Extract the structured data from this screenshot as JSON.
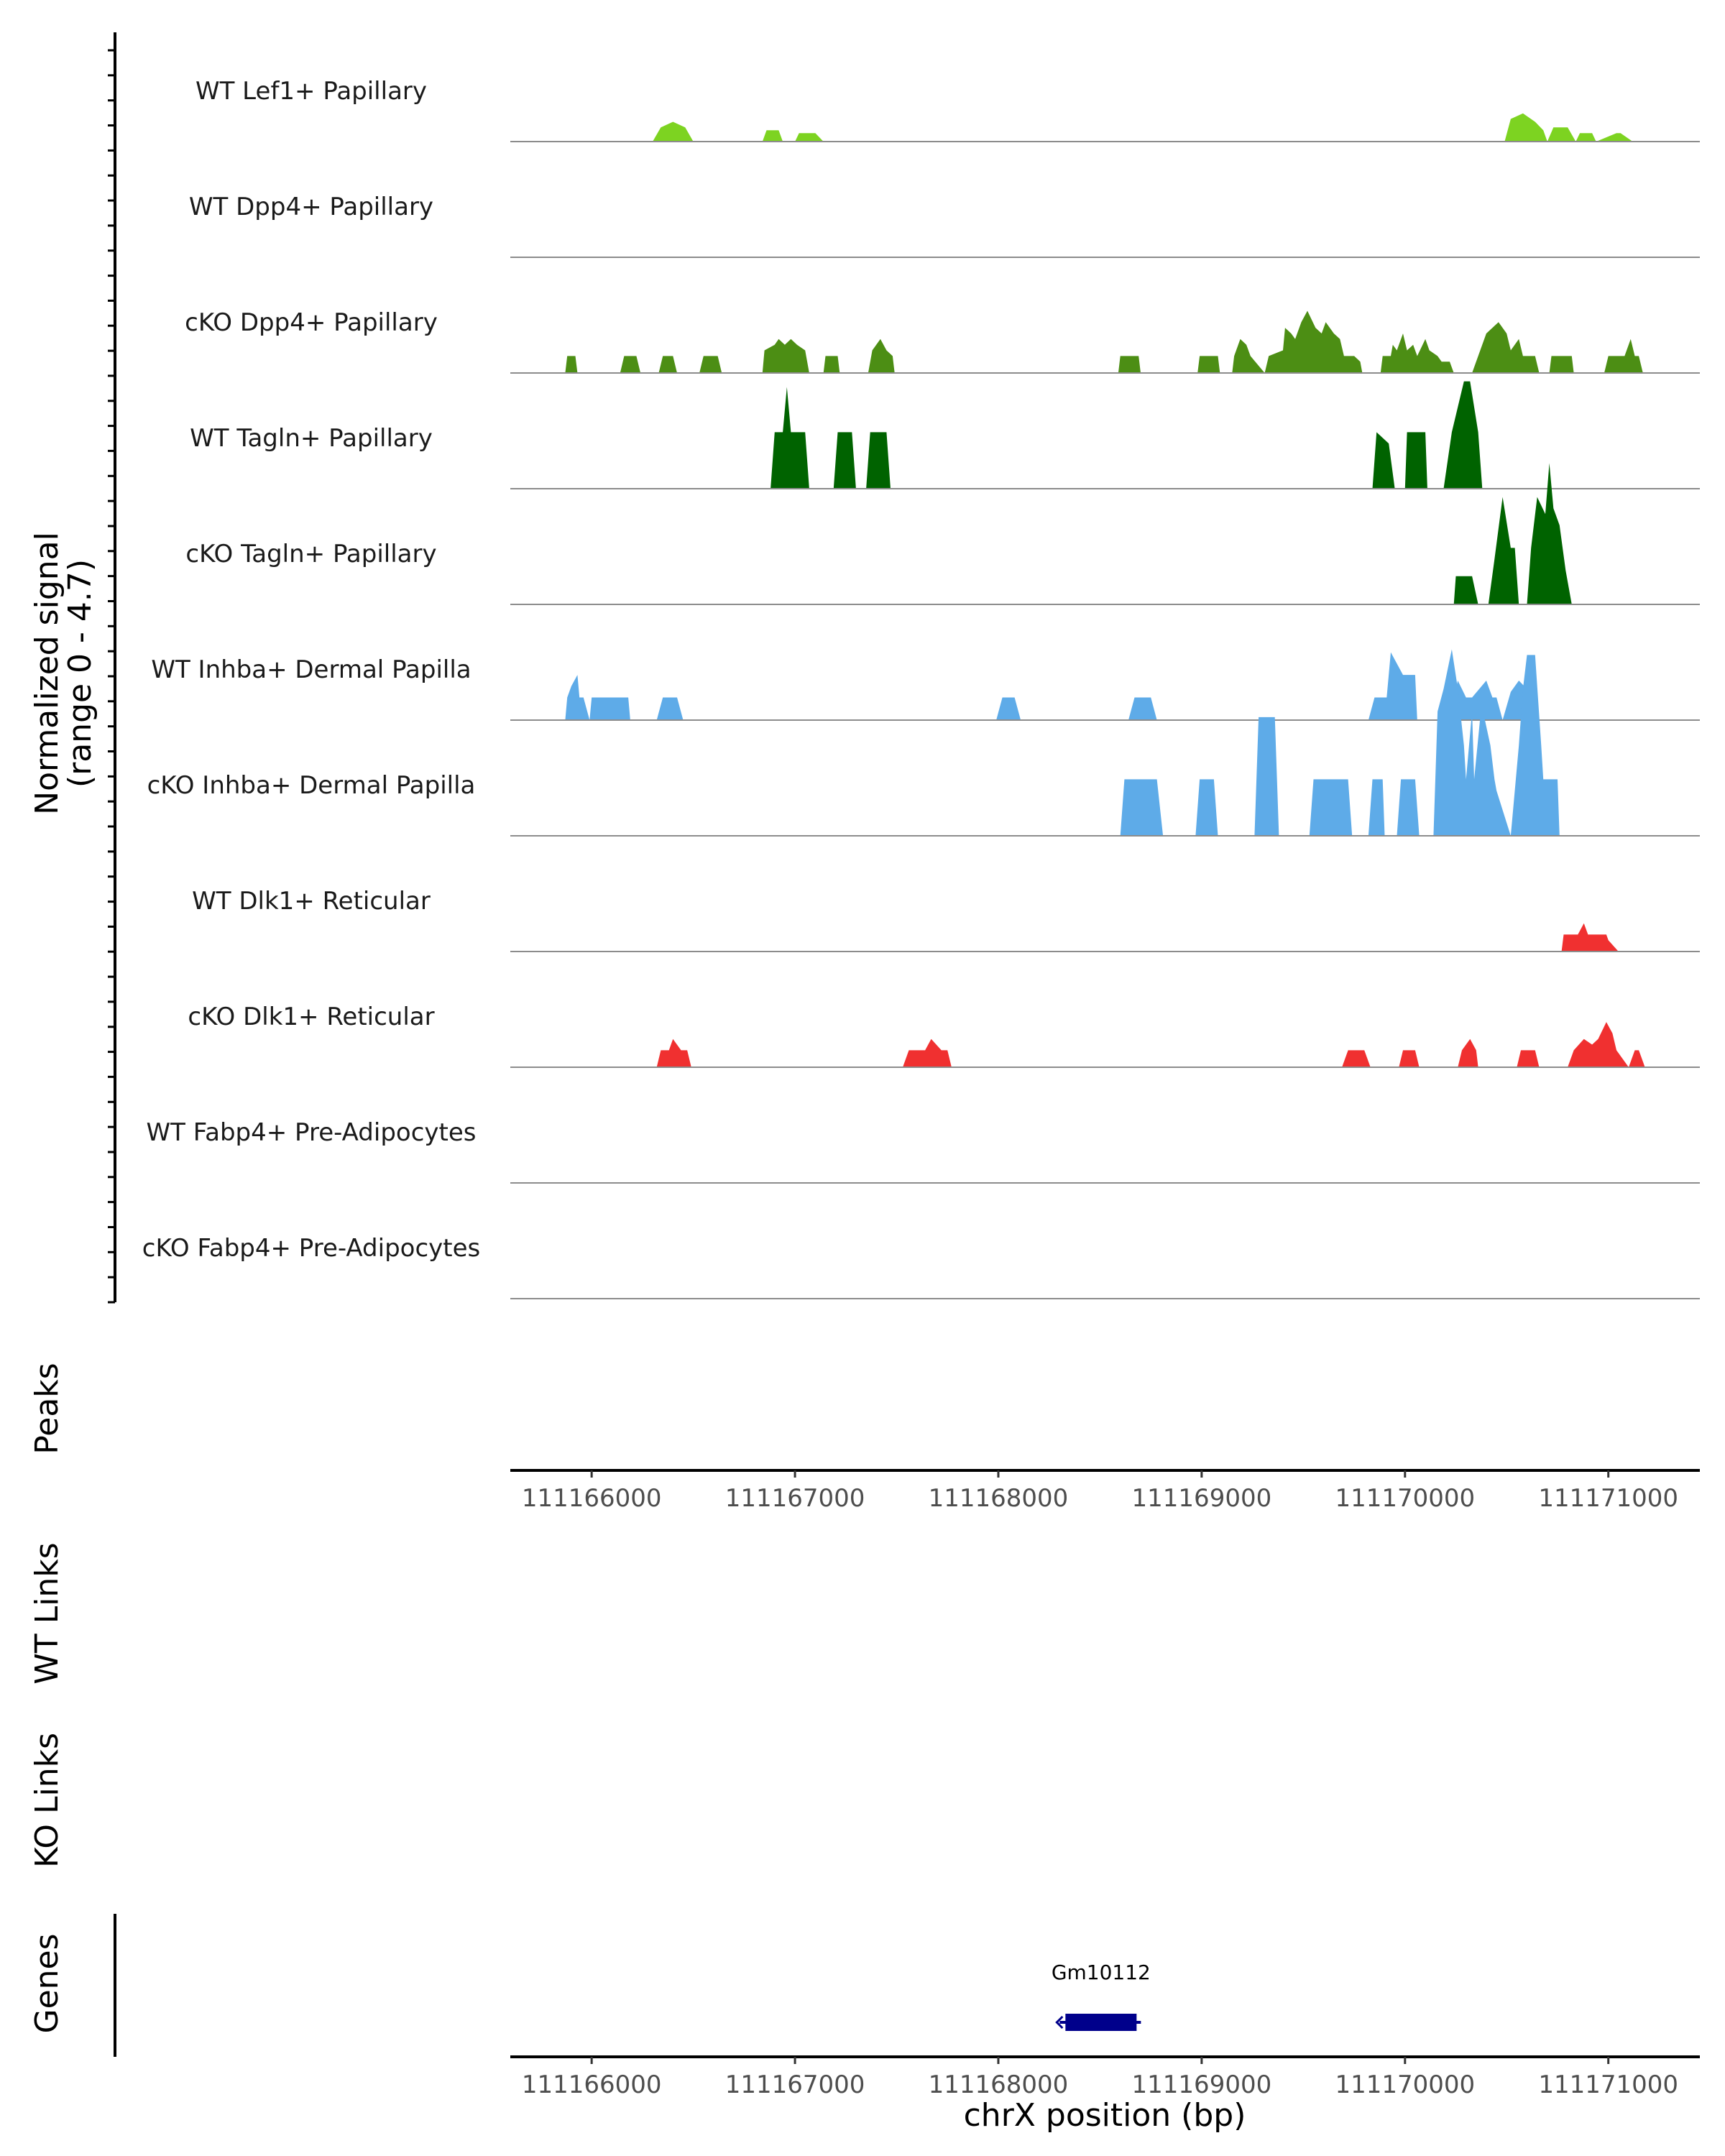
{
  "chart_data": {
    "type": "area",
    "title": "",
    "region": "chrX",
    "xlabel": "chrX position (bp)",
    "xlim": [
      111165600,
      111171450
    ],
    "x_ticks": [
      "111166000",
      "111167000",
      "111168000",
      "111169000",
      "111170000",
      "111171000"
    ],
    "x_tick_values": [
      111166000,
      111167000,
      111168000,
      111169000,
      111170000,
      111171000
    ],
    "ylabel_line1": "Normalized signal",
    "ylabel_line2": "(range 0 - 4.7)",
    "ylim": [
      0,
      4.7
    ],
    "series": [
      {
        "name": "WT Lef1+ Papillary",
        "color": "#7dd321",
        "x": [
          111166300,
          111166340,
          111166400,
          111166460,
          111166500,
          111166840,
          111166860,
          111166920,
          111166940,
          111167000,
          111167020,
          111167100,
          111167140,
          111170490,
          111170520,
          111170580,
          111170640,
          111170680,
          111170700,
          111170730,
          111170800,
          111170840,
          111170860,
          111170920,
          111170940,
          111171040,
          111171060,
          111171120,
          111171140
        ],
        "y": [
          0,
          0.25,
          0.35,
          0.25,
          0,
          0,
          0.2,
          0.2,
          0,
          0,
          0.15,
          0.15,
          0,
          0,
          0.4,
          0.5,
          0.35,
          0.2,
          0,
          0.25,
          0.25,
          0,
          0.15,
          0.15,
          0,
          0.15,
          0.15,
          0,
          0
        ]
      },
      {
        "name": "WT Dpp4+ Papillary",
        "color": "#4c8e14",
        "x": [],
        "y": []
      },
      {
        "name": "cKO Dpp4+ Papillary",
        "color": "#4c8e14",
        "x": [
          111165870,
          111165880,
          111165920,
          111165930,
          111166140,
          111166160,
          111166220,
          111166240,
          111166330,
          111166350,
          111166400,
          111166420,
          111166530,
          111166550,
          111166620,
          111166640,
          111166840,
          111166850,
          111166900,
          111166920,
          111166950,
          111166980,
          111167010,
          111167050,
          111167070,
          111167140,
          111167150,
          111167210,
          111167220,
          111167360,
          111167380,
          111167420,
          111167450,
          111167480,
          111167490,
          111168590,
          111168600,
          111168690,
          111168700,
          111168980,
          111168990,
          111169080,
          111169090,
          111169150,
          111169160,
          111169190,
          111169220,
          111169240,
          111169310,
          111169330,
          111169400,
          111169410,
          111169440,
          111169460,
          111169490,
          111169520,
          111169560,
          111169590,
          111169610,
          111169650,
          111169680,
          111169700,
          111169750,
          111169780,
          111169790,
          111169880,
          111169890,
          111169930,
          111169940,
          111169960,
          111169990,
          111170010,
          111170040,
          111170060,
          111170100,
          111170120,
          111170160,
          111170180,
          111170220,
          111170240,
          111170330,
          111170360,
          111170400,
          111170460,
          111170500,
          111170520,
          111170560,
          111170580,
          111170640,
          111170660,
          111170710,
          111170720,
          111170820,
          111170830,
          111170980,
          111171000,
          111171080,
          111171110,
          111171130,
          111171150,
          111171170
        ],
        "y": [
          0,
          0.3,
          0.3,
          0,
          0,
          0.3,
          0.3,
          0,
          0,
          0.3,
          0.3,
          0,
          0,
          0.3,
          0.3,
          0,
          0,
          0.4,
          0.5,
          0.6,
          0.5,
          0.6,
          0.5,
          0.4,
          0,
          0,
          0.3,
          0.3,
          0,
          0,
          0.4,
          0.6,
          0.4,
          0.3,
          0,
          0,
          0.3,
          0.3,
          0,
          0,
          0.3,
          0.3,
          0,
          0,
          0.3,
          0.6,
          0.5,
          0.3,
          0,
          0.3,
          0.4,
          0.8,
          0.7,
          0.6,
          0.9,
          1.1,
          0.8,
          0.7,
          0.9,
          0.7,
          0.6,
          0.3,
          0.3,
          0.2,
          0,
          0,
          0.3,
          0.3,
          0.5,
          0.4,
          0.7,
          0.4,
          0.5,
          0.3,
          0.6,
          0.4,
          0.3,
          0.2,
          0.2,
          0,
          0,
          0.3,
          0.7,
          0.9,
          0.7,
          0.4,
          0.6,
          0.3,
          0.3,
          0,
          0,
          0.3,
          0.3,
          0,
          0,
          0.3,
          0.3,
          0.6,
          0.3,
          0.3,
          0
        ]
      },
      {
        "name": "WT Tagln+ Papillary",
        "color": "#006300",
        "x": [
          111166880,
          111166900,
          111166940,
          111166960,
          111166980,
          111167050,
          111167070,
          111167190,
          111167210,
          111167280,
          111167300,
          111167350,
          111167370,
          111167450,
          111167470,
          111169840,
          111169860,
          111169920,
          111169950,
          111170000,
          111170010,
          111170100,
          111170110,
          111170190,
          111170230,
          111170290,
          111170320,
          111170360,
          111170380
        ],
        "y": [
          0,
          1.0,
          1.0,
          1.8,
          1.0,
          1.0,
          0,
          0,
          1.0,
          1.0,
          0,
          0,
          1.0,
          1.0,
          0,
          0,
          1.0,
          0.8,
          0,
          0,
          1.0,
          1.0,
          0,
          0,
          1.0,
          1.9,
          1.9,
          1.0,
          0
        ]
      },
      {
        "name": "cKO Tagln+ Papillary",
        "color": "#006300",
        "x": [
          111170240,
          111170250,
          111170330,
          111170360,
          111170410,
          111170440,
          111170480,
          111170520,
          111170540,
          111170560,
          111170600,
          111170620,
          111170650,
          111170690,
          111170710,
          111170730,
          111170760,
          111170790,
          111170820
        ],
        "y": [
          0,
          0.5,
          0.5,
          0,
          0,
          0.8,
          1.9,
          1.0,
          1.0,
          0,
          0,
          1.0,
          1.9,
          1.6,
          2.5,
          1.7,
          1.4,
          0.6,
          0
        ]
      },
      {
        "name": "WT Inhba+ Dermal Papilla",
        "color": "#5eabe8",
        "x": [
          111165870,
          111165880,
          111165900,
          111165930,
          111165940,
          111165960,
          111165990,
          111166000,
          111166180,
          111166190,
          111166320,
          111166350,
          111166420,
          111166450,
          111167990,
          111168020,
          111168080,
          111168110,
          111168640,
          111168670,
          111168750,
          111168780,
          111169820,
          111169850,
          111169910,
          111169930,
          111169960,
          111169990,
          111170050,
          111170060,
          111170170,
          111170200,
          111170240,
          111170260,
          111170300,
          111170330,
          111170400,
          111170430,
          111170450,
          111170480,
          111170520,
          111170560,
          111170640,
          111170660
        ],
        "y": [
          0,
          0.4,
          0.6,
          0.8,
          0.4,
          0.4,
          0,
          0.4,
          0.4,
          0,
          0,
          0.4,
          0.4,
          0,
          0,
          0.4,
          0.4,
          0,
          0,
          0.4,
          0.4,
          0,
          0,
          0.4,
          0.4,
          1.2,
          1.0,
          0.8,
          0.8,
          0,
          0,
          0.4,
          0.4,
          0.7,
          0.4,
          0.4,
          0.7,
          0.4,
          0.4,
          0,
          0.5,
          0.7,
          0.4,
          0
        ]
      },
      {
        "name": "cKO Inhba+ Dermal Papilla",
        "color": "#5eabe8",
        "x": [
          111168600,
          111168620,
          111168780,
          111168810,
          111168970,
          111168990,
          111169060,
          111169080,
          111169260,
          111169280,
          111169360,
          111169380,
          111169530,
          111169550,
          111169720,
          111169740,
          111169820,
          111169840,
          111169890,
          111169900,
          111169960,
          111169980,
          111170050,
          111170070,
          111170140,
          111170160,
          111170190,
          111170230,
          111170260,
          111170290,
          111170300,
          111170330,
          111170340,
          111170370,
          111170390,
          111170420,
          111170440,
          111170450,
          111170520,
          111170560,
          111170580,
          111170600,
          111170640,
          111170670,
          111170680,
          111170700,
          111170750,
          111170760
        ],
        "y": [
          0,
          1.0,
          1.0,
          0,
          0,
          1.0,
          1.0,
          0,
          0,
          2.1,
          2.1,
          0,
          0,
          1.0,
          1.0,
          0,
          0,
          1.0,
          1.0,
          0,
          0,
          1.0,
          1.0,
          0,
          0,
          2.2,
          2.6,
          3.3,
          2.6,
          1.6,
          1.0,
          2.2,
          1.0,
          2.1,
          2.1,
          1.6,
          1.0,
          0.8,
          0,
          1.6,
          2.6,
          3.2,
          3.2,
          1.6,
          1.0,
          1.0,
          1.0,
          0
        ]
      },
      {
        "name": "WT Dlk1+ Reticular",
        "color": "#f03030",
        "x": [
          111170770,
          111170780,
          111170850,
          111170880,
          111170900,
          111170960,
          111170990,
          111171000,
          111171050
        ],
        "y": [
          0,
          0.3,
          0.3,
          0.5,
          0.3,
          0.3,
          0.3,
          0.2,
          0
        ]
      },
      {
        "name": "cKO Dlk1+ Reticular",
        "color": "#f03030",
        "x": [
          111166320,
          111166340,
          111166380,
          111166400,
          111166440,
          111166470,
          111166490,
          111167530,
          111167560,
          111167640,
          111167670,
          111167720,
          111167750,
          111167770,
          111169690,
          111169720,
          111169800,
          111169830,
          111169970,
          111169990,
          111170050,
          111170070,
          111170260,
          111170280,
          111170320,
          111170350,
          111170360,
          111170550,
          111170570,
          111170640,
          111170660,
          111170800,
          111170830,
          111170880,
          111170920,
          111170950,
          111170990,
          111171020,
          111171040,
          111171100,
          111171130,
          111171150,
          111171180
        ],
        "y": [
          0,
          0.3,
          0.3,
          0.5,
          0.3,
          0.3,
          0,
          0,
          0.3,
          0.3,
          0.5,
          0.3,
          0.3,
          0,
          0,
          0.3,
          0.3,
          0,
          0,
          0.3,
          0.3,
          0,
          0,
          0.3,
          0.5,
          0.3,
          0,
          0,
          0.3,
          0.3,
          0,
          0,
          0.3,
          0.5,
          0.4,
          0.5,
          0.8,
          0.6,
          0.3,
          0,
          0.3,
          0.3,
          0
        ]
      },
      {
        "name": "WT Fabp4+ Pre-Adipocytes",
        "color": "#f03030",
        "x": [],
        "y": []
      },
      {
        "name": "cKO Fabp4+ Pre-Adipocytes",
        "color": "#f03030",
        "x": [],
        "y": []
      }
    ],
    "annotation_tracks": {
      "peaks": "Peaks",
      "wt_links": "WT Links",
      "ko_links": "KO Links",
      "genes": "Genes"
    },
    "genes": [
      {
        "name": "Gm10112",
        "start": 111168330,
        "end": 111168680,
        "strand": "-",
        "color": "#00008b"
      }
    ]
  }
}
